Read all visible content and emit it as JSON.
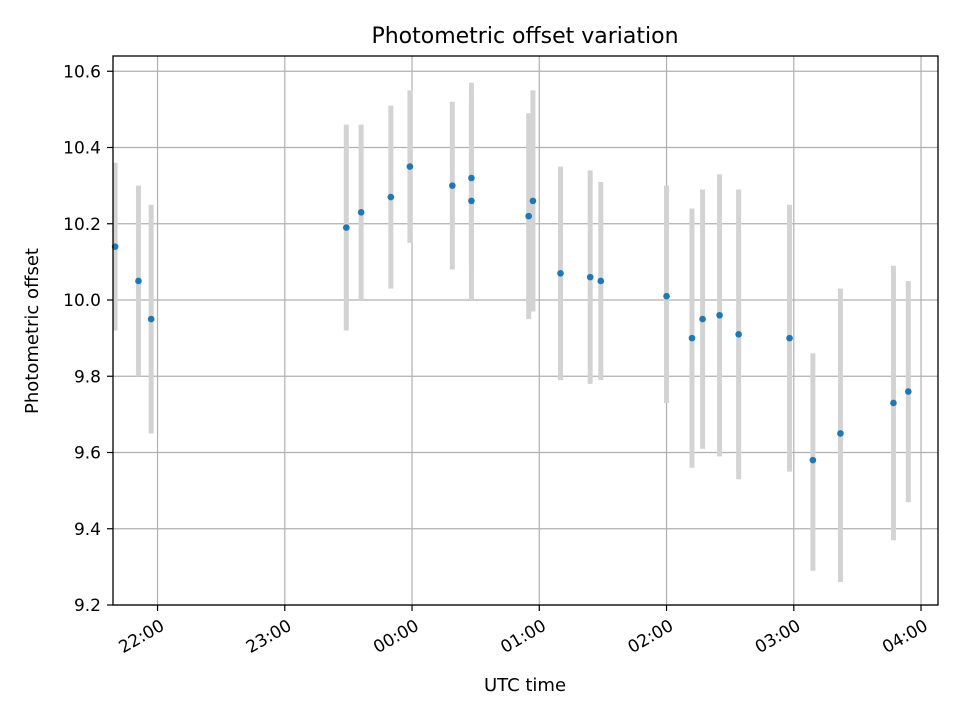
{
  "chart_data": {
    "type": "scatter",
    "title": "Photometric offset variation",
    "xlabel": "UTC time",
    "ylabel": "Photometric offset",
    "x_axis_kind": "time",
    "xlim": [
      "21:39",
      "04:08"
    ],
    "ylim": [
      9.2,
      10.64
    ],
    "yticks": [
      9.2,
      9.4,
      9.6,
      9.8,
      10.0,
      10.2,
      10.4,
      10.6
    ],
    "xticks": [
      "22:00",
      "23:00",
      "00:00",
      "01:00",
      "02:00",
      "03:00",
      "04:00"
    ],
    "grid": true,
    "point_color": "#1f77b4",
    "errorbar_color": "#d3d3d3",
    "series": [
      {
        "points": [
          {
            "x": "21:40",
            "y": 10.14,
            "lo": 9.92,
            "hi": 10.36
          },
          {
            "x": "21:51",
            "y": 10.05,
            "lo": 9.8,
            "hi": 10.3
          },
          {
            "x": "21:57",
            "y": 9.95,
            "lo": 9.65,
            "hi": 10.25
          },
          {
            "x": "23:29",
            "y": 10.19,
            "lo": 9.92,
            "hi": 10.46
          },
          {
            "x": "23:36",
            "y": 10.23,
            "lo": 10.0,
            "hi": 10.46
          },
          {
            "x": "23:50",
            "y": 10.27,
            "lo": 10.03,
            "hi": 10.51
          },
          {
            "x": "23:59",
            "y": 10.35,
            "lo": 10.15,
            "hi": 10.55
          },
          {
            "x": "00:19",
            "y": 10.3,
            "lo": 10.08,
            "hi": 10.52
          },
          {
            "x": "00:28",
            "y": 10.32,
            "lo": 10.08,
            "hi": 10.57
          },
          {
            "x": "00:28",
            "y": 10.26,
            "lo": 10.0,
            "hi": 10.53
          },
          {
            "x": "00:55",
            "y": 10.22,
            "lo": 9.95,
            "hi": 10.49
          },
          {
            "x": "00:57",
            "y": 10.26,
            "lo": 9.97,
            "hi": 10.55
          },
          {
            "x": "01:10",
            "y": 10.07,
            "lo": 9.79,
            "hi": 10.35
          },
          {
            "x": "01:24",
            "y": 10.06,
            "lo": 9.78,
            "hi": 10.34
          },
          {
            "x": "01:29",
            "y": 10.05,
            "lo": 9.79,
            "hi": 10.31
          },
          {
            "x": "02:00",
            "y": 10.01,
            "lo": 9.73,
            "hi": 10.3
          },
          {
            "x": "02:12",
            "y": 9.9,
            "lo": 9.56,
            "hi": 10.24
          },
          {
            "x": "02:17",
            "y": 9.95,
            "lo": 9.61,
            "hi": 10.29
          },
          {
            "x": "02:25",
            "y": 9.96,
            "lo": 9.59,
            "hi": 10.33
          },
          {
            "x": "02:34",
            "y": 9.91,
            "lo": 9.53,
            "hi": 10.29
          },
          {
            "x": "02:58",
            "y": 9.9,
            "lo": 9.55,
            "hi": 10.25
          },
          {
            "x": "03:09",
            "y": 9.58,
            "lo": 9.29,
            "hi": 9.86
          },
          {
            "x": "03:22",
            "y": 9.65,
            "lo": 9.26,
            "hi": 10.03
          },
          {
            "x": "03:47",
            "y": 9.73,
            "lo": 9.37,
            "hi": 10.09
          },
          {
            "x": "03:54",
            "y": 9.76,
            "lo": 9.47,
            "hi": 10.05
          }
        ]
      }
    ]
  }
}
